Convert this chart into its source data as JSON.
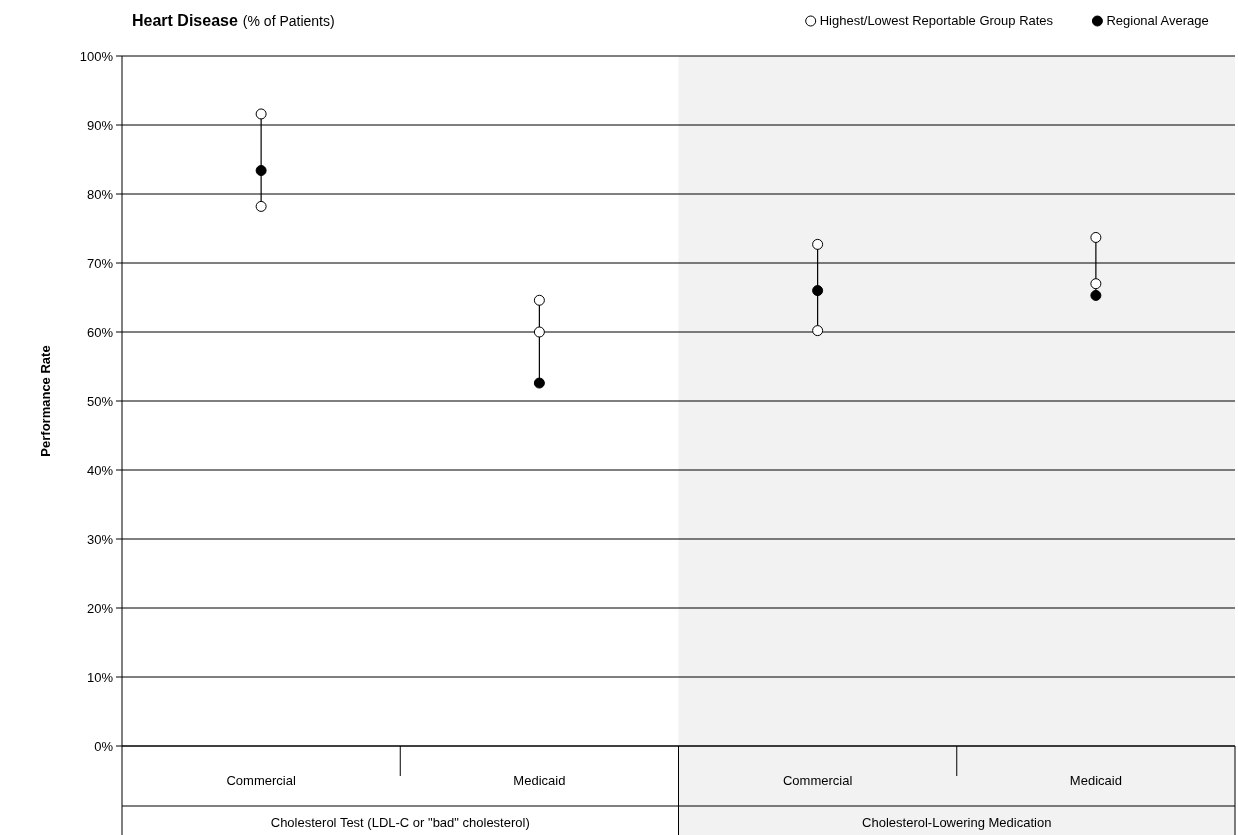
{
  "chart_data": {
    "type": "scatter",
    "title": "Heart Disease",
    "subtitle": "(% of Patients)",
    "ylabel": "Performance Rate",
    "categories": [
      "Commercial",
      "Medicaid",
      "Commercial",
      "Medicaid"
    ],
    "annotations": [
      "Cholesterol Test (LDL-C or \"bad\" cholesterol)",
      "Cholesterol-Lowering Medication"
    ],
    "series": [
      {
        "name": "Highest/Lowest Reportable Group Rates",
        "color": "#ffffff",
        "values": [
          91.6,
          64.6,
          72.7,
          73.7
        ]
      },
      {
        "color": "#ffffff",
        "values": [
          78.2,
          60.0,
          60.2,
          67.0
        ]
      },
      {
        "name": "Regional Average",
        "color": "#000000",
        "values": [
          83.4,
          52.6,
          66.0,
          65.3
        ]
      }
    ],
    "ylim": [
      0,
      100
    ],
    "yticks": [
      {
        "value": 0,
        "label": "0%"
      },
      {
        "value": 10,
        "label": "10%"
      },
      {
        "value": 20,
        "label": "20%"
      },
      {
        "value": 30,
        "label": "30%"
      },
      {
        "value": 40,
        "label": "40%"
      },
      {
        "value": 50,
        "label": "50%"
      },
      {
        "value": 60,
        "label": "60%"
      },
      {
        "value": 70,
        "label": "70%"
      },
      {
        "value": 80,
        "label": "80%"
      },
      {
        "value": 90,
        "label": "90%"
      },
      {
        "value": 100,
        "label": "100%"
      }
    ],
    "grid": "y",
    "legend": "top right",
    "marker": "circle"
  }
}
